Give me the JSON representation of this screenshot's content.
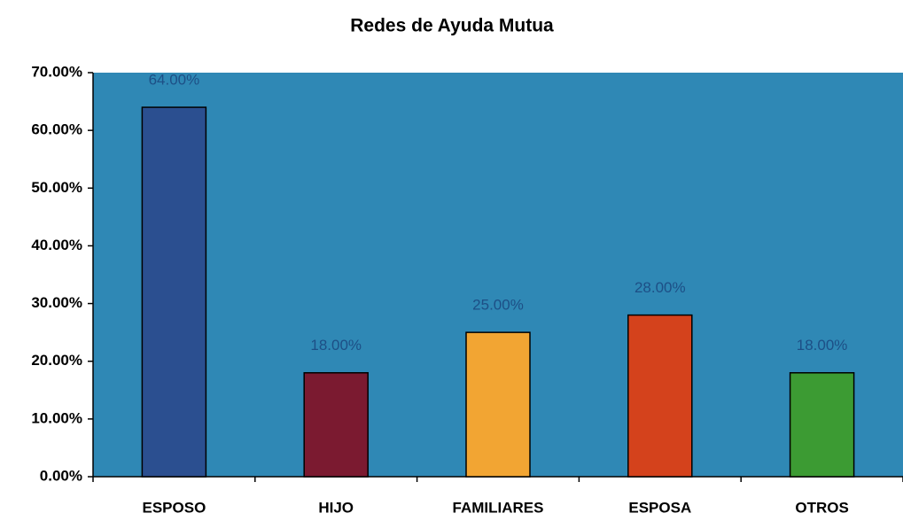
{
  "chart_data": {
    "type": "bar",
    "title": "Redes de Ayuda Mutua",
    "categories": [
      "ESPOSO",
      "HIJO",
      "FAMILIARES",
      "ESPOSA",
      "OTROS"
    ],
    "values": [
      64,
      18,
      25,
      28,
      18
    ],
    "value_labels": [
      "64.00%",
      "18.00%",
      "25.00%",
      "28.00%",
      "18.00%"
    ],
    "colors": [
      "#2b4f90",
      "#7b1a30",
      "#f2a533",
      "#d4421c",
      "#3c9b33"
    ],
    "ylim": [
      0,
      70
    ],
    "yticks": [
      {
        "value": 0,
        "label": "0.00%"
      },
      {
        "value": 10,
        "label": "10.00%"
      },
      {
        "value": 20,
        "label": "20.00%"
      },
      {
        "value": 30,
        "label": "30.00%"
      },
      {
        "value": 40,
        "label": "40.00%"
      },
      {
        "value": 50,
        "label": "50.00%"
      },
      {
        "value": 60,
        "label": "60.00%"
      },
      {
        "value": 70,
        "label": "70.00%"
      }
    ],
    "grid": false
  }
}
